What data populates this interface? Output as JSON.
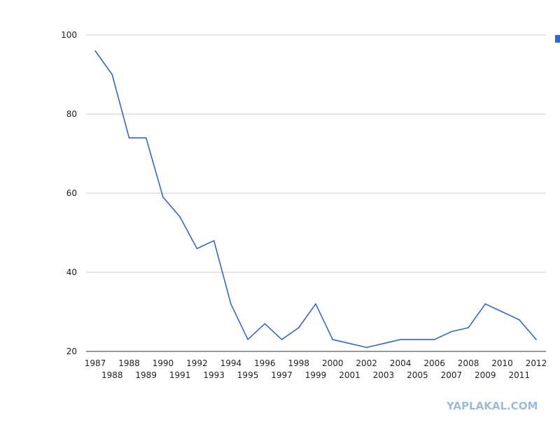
{
  "chart_data": {
    "type": "line",
    "title": "",
    "xlabel": "",
    "ylabel": "",
    "categories": [
      "1987",
      "1988",
      "1988",
      "1989",
      "1990",
      "1991",
      "1992",
      "1993",
      "1994",
      "1995",
      "1996",
      "1997",
      "1998",
      "1999",
      "2000",
      "2001",
      "2002",
      "2003",
      "2004",
      "2005",
      "2006",
      "2007",
      "2008",
      "2009",
      "2010",
      "2011",
      "2012"
    ],
    "series": [
      {
        "name": "",
        "color": "#3366cc",
        "values": [
          96,
          90,
          74,
          74,
          59,
          54,
          46,
          48,
          32,
          23,
          27,
          23,
          26,
          32,
          23,
          22,
          21,
          22,
          23,
          23,
          23,
          25,
          26,
          32,
          30,
          28,
          23
        ]
      }
    ],
    "ylim": [
      20,
      100
    ],
    "yticks": [
      20,
      40,
      60,
      80,
      100
    ],
    "grid": true,
    "legend": "top-right (clipped)"
  },
  "watermark": "YAPLAKAL.COM"
}
